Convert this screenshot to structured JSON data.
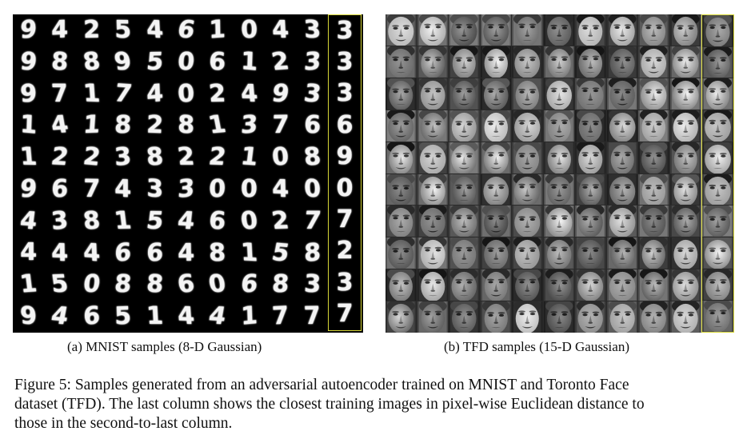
{
  "figure": {
    "panel_a": {
      "subcaption": "(a)  MNIST samples (8-D Gaussian)",
      "samples": [
        [
          "9",
          "4",
          "2",
          "5",
          "4",
          "6",
          "1",
          "0",
          "4",
          "3"
        ],
        [
          "9",
          "8",
          "8",
          "9",
          "5",
          "0",
          "6",
          "1",
          "2",
          "3"
        ],
        [
          "9",
          "7",
          "1",
          "7",
          "4",
          "0",
          "2",
          "4",
          "9",
          "3"
        ],
        [
          "1",
          "4",
          "1",
          "8",
          "2",
          "8",
          "1",
          "3",
          "7",
          "6"
        ],
        [
          "1",
          "2",
          "2",
          "3",
          "8",
          "2",
          "2",
          "1",
          "0",
          "8"
        ],
        [
          "9",
          "6",
          "7",
          "4",
          "3",
          "3",
          "0",
          "0",
          "4",
          "0"
        ],
        [
          "4",
          "3",
          "8",
          "1",
          "5",
          "4",
          "6",
          "0",
          "2",
          "7"
        ],
        [
          "4",
          "4",
          "4",
          "6",
          "6",
          "4",
          "8",
          "1",
          "5",
          "8"
        ],
        [
          "1",
          "5",
          "0",
          "8",
          "8",
          "6",
          "0",
          "6",
          "8",
          "3"
        ],
        [
          "9",
          "4",
          "6",
          "5",
          "1",
          "4",
          "4",
          "1",
          "7",
          "7"
        ]
      ],
      "nearest_neighbors": [
        "3",
        "3",
        "3",
        "6",
        "9",
        "0",
        "7",
        "2",
        "3",
        "7"
      ]
    },
    "panel_b": {
      "subcaption": "(b)  TFD samples (15-D Gaussian)",
      "rows": 10,
      "cols": 10
    },
    "highlight_color": "#d8d838",
    "caption_lines": [
      "Figure 5: Samples generated from an adversarial autoencoder trained on MNIST and Toronto Face",
      "dataset (TFD). The last column shows the closest training images in pixel-wise Euclidean distance to",
      "those in the second-to-last column."
    ]
  }
}
